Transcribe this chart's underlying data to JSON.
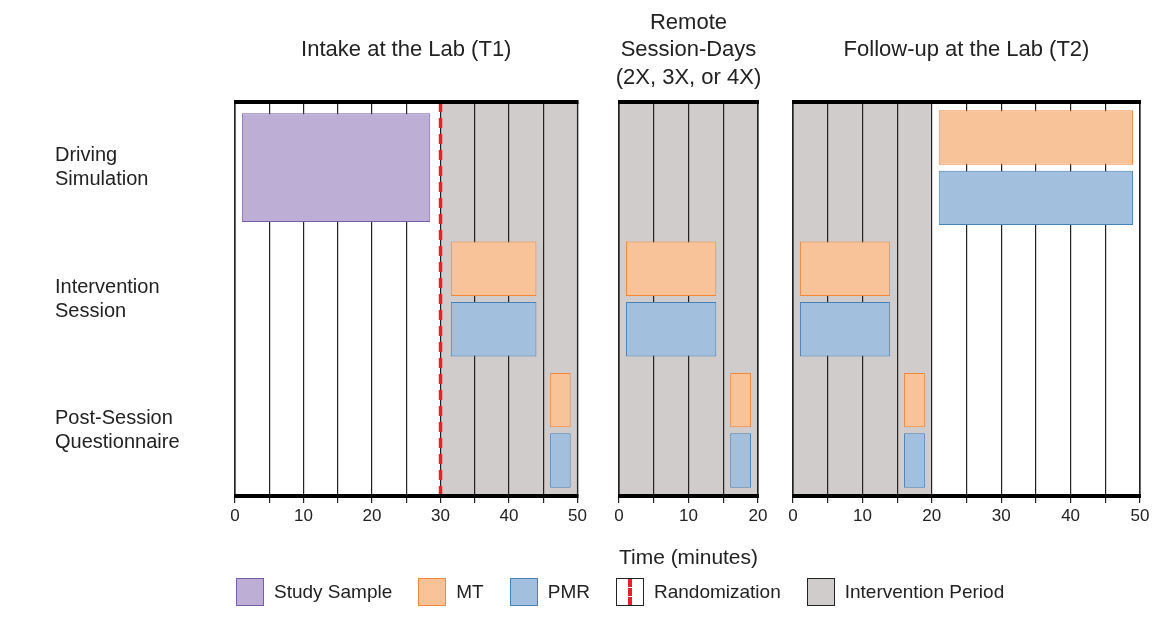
{
  "chart_data": [
    {
      "type": "bar",
      "orientation": "horizontal",
      "title": "Intake at the Lab (T1)",
      "categories": [
        "Driving Simulation",
        "Intervention Session",
        "Post-Session Questionnaire"
      ],
      "series": [
        {
          "name": "Study Sample",
          "color": "#bcaed4",
          "base": [
            1,
            null,
            null
          ],
          "values": [
            27.5,
            null,
            null
          ]
        },
        {
          "name": "MT",
          "color": "#f9c39a",
          "base": [
            null,
            31.5,
            46
          ],
          "values": [
            null,
            12.5,
            3
          ]
        },
        {
          "name": "PMR",
          "color": "#a2c0dd",
          "base": [
            null,
            31.5,
            46
          ],
          "values": [
            null,
            12.5,
            3
          ]
        }
      ],
      "xlim": [
        0,
        50
      ],
      "xticks": [
        0,
        {
          "value": 5,
          "label": null
        },
        10,
        {
          "value": 15,
          "label": null
        },
        20,
        {
          "value": 25,
          "label": null
        },
        30,
        {
          "value": 35,
          "label": null
        },
        40,
        {
          "value": 45,
          "label": null
        },
        50
      ],
      "grid": "x",
      "legend": "bottom",
      "ref_lines": [
        {
          "axis": "x",
          "value": 30,
          "label": "Randomization",
          "color": "#e8202a",
          "line_style": "dashed"
        }
      ],
      "bands": [
        {
          "axis": "x",
          "from": 30,
          "to": 50,
          "label": "Intervention Period",
          "color": "#d0cccb"
        }
      ]
    },
    {
      "type": "bar",
      "orientation": "horizontal",
      "title": "Remote\nSession-Days\n(2X, 3X, or 4X)",
      "xlabel": "Time (minutes)",
      "categories": [
        null,
        null,
        null
      ],
      "tick_labels": "x",
      "series": [
        {
          "color": "#f9c39a",
          "base": [
            null,
            1,
            16
          ],
          "values": [
            null,
            13,
            3
          ]
        },
        {
          "color": "#a2c0dd",
          "base": [
            null,
            1,
            16
          ],
          "values": [
            null,
            13,
            3
          ]
        }
      ],
      "xlim": [
        0,
        20
      ],
      "xticks": [
        0,
        {
          "value": 5,
          "label": null
        },
        10,
        {
          "value": 15,
          "label": null
        },
        20
      ],
      "grid": "x",
      "bands": [
        {
          "axis": "x",
          "from": 0,
          "to": 20,
          "color": "#d0cccb"
        }
      ]
    },
    {
      "type": "bar",
      "orientation": "horizontal",
      "title": "Follow-up at the Lab (T2)",
      "categories": [
        null,
        null,
        null
      ],
      "tick_labels": "x",
      "series": [
        {
          "color": "#f9c39a",
          "base": [
            21,
            1,
            16
          ],
          "values": [
            28,
            13,
            3
          ]
        },
        {
          "color": "#a2c0dd",
          "base": [
            21,
            1,
            16
          ],
          "values": [
            28,
            13,
            3
          ]
        }
      ],
      "xlim": [
        0,
        50
      ],
      "xticks": [
        0,
        {
          "value": 5,
          "label": null
        },
        10,
        {
          "value": 15,
          "label": null
        },
        20,
        {
          "value": 25,
          "label": null
        },
        30,
        {
          "value": 35,
          "label": null
        },
        40,
        {
          "value": 45,
          "label": null
        },
        50
      ],
      "grid": "x",
      "bands": [
        {
          "axis": "x",
          "from": 0,
          "to": 20,
          "color": "#d0cccb"
        }
      ]
    }
  ]
}
